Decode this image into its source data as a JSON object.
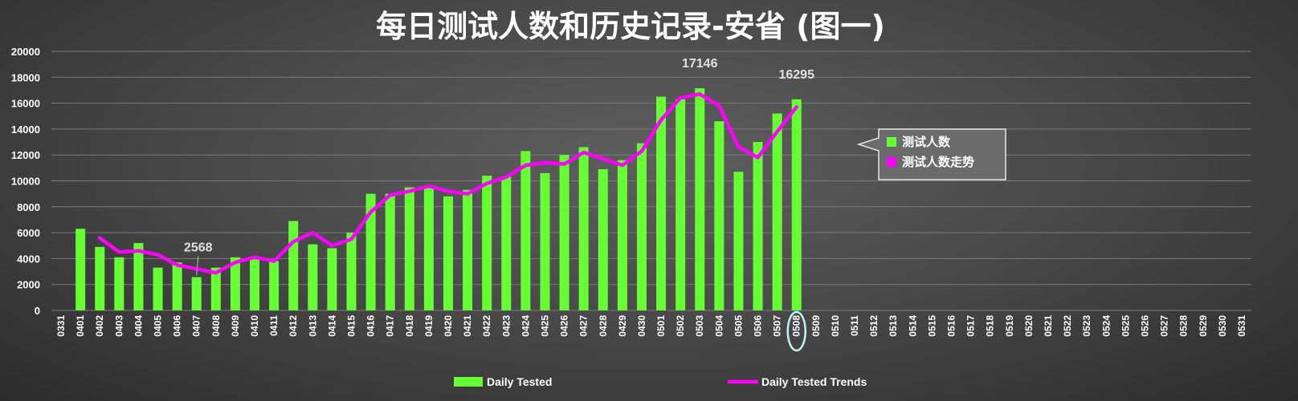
{
  "chart_data": {
    "type": "bar",
    "title": "每日测试人数和历史记录-安省 (图一)",
    "xlabel": "",
    "ylabel": "",
    "ylim": [
      0,
      20000
    ],
    "yticks": [
      0,
      2000,
      4000,
      6000,
      8000,
      10000,
      12000,
      14000,
      16000,
      18000,
      20000
    ],
    "grid": true,
    "legend_position": "bottom",
    "categories": [
      "0331",
      "0401",
      "0402",
      "0403",
      "0404",
      "0405",
      "0406",
      "0407",
      "0408",
      "0409",
      "0410",
      "0411",
      "0412",
      "0413",
      "0414",
      "0415",
      "0416",
      "0417",
      "0418",
      "0419",
      "0420",
      "0421",
      "0422",
      "0423",
      "0424",
      "0425",
      "0426",
      "0427",
      "0428",
      "0429",
      "0430",
      "0501",
      "0502",
      "0503",
      "0504",
      "0505",
      "0506",
      "0507",
      "0508",
      "0509",
      "0510",
      "0511",
      "0512",
      "0513",
      "0514",
      "0515",
      "0516",
      "0517",
      "0518",
      "0519",
      "0520",
      "0521",
      "0522",
      "0523",
      "0524",
      "0525",
      "0526",
      "0527",
      "0528",
      "0529",
      "0530",
      "0531"
    ],
    "series": [
      {
        "name": "Daily Tested",
        "type": "bar",
        "color": "#66ff33",
        "values": [
          null,
          6300,
          4900,
          4100,
          5200,
          3300,
          3700,
          2568,
          3300,
          4100,
          4000,
          3800,
          6900,
          5100,
          4800,
          6000,
          9000,
          9000,
          9500,
          9500,
          8800,
          9300,
          10400,
          10300,
          12300,
          10600,
          12000,
          12600,
          10900,
          11600,
          12900,
          16500,
          16300,
          17146,
          14600,
          10700,
          13000,
          15200,
          16295,
          null,
          null,
          null,
          null,
          null,
          null,
          null,
          null,
          null,
          null,
          null,
          null,
          null,
          null,
          null,
          null,
          null,
          null,
          null,
          null,
          null,
          null,
          null
        ]
      },
      {
        "name": "Daily Tested Trends",
        "type": "line",
        "color": "#ff00ff",
        "values": [
          null,
          null,
          5600,
          4500,
          4600,
          4300,
          3500,
          3200,
          2900,
          3700,
          4100,
          3800,
          5300,
          6000,
          5000,
          5500,
          7600,
          8900,
          9200,
          9600,
          9200,
          9000,
          9800,
          10300,
          11200,
          11400,
          11300,
          12200,
          11700,
          11200,
          12300,
          14700,
          16400,
          16700,
          15800,
          12600,
          11800,
          13800,
          15700,
          null,
          null,
          null,
          null,
          null,
          null,
          null,
          null,
          null,
          null,
          null,
          null,
          null,
          null,
          null,
          null,
          null,
          null,
          null,
          null,
          null,
          null,
          null
        ]
      }
    ],
    "data_labels": [
      {
        "category": "0407",
        "text": "2568"
      },
      {
        "category": "0503",
        "text": "17146"
      },
      {
        "category": "0508",
        "text": "16295"
      }
    ],
    "highlight_category": "0508",
    "callout_legend": [
      {
        "text": "测试人数",
        "color": "#66ff33"
      },
      {
        "text": "测试人数走势",
        "color": "#ff00ff"
      }
    ]
  }
}
